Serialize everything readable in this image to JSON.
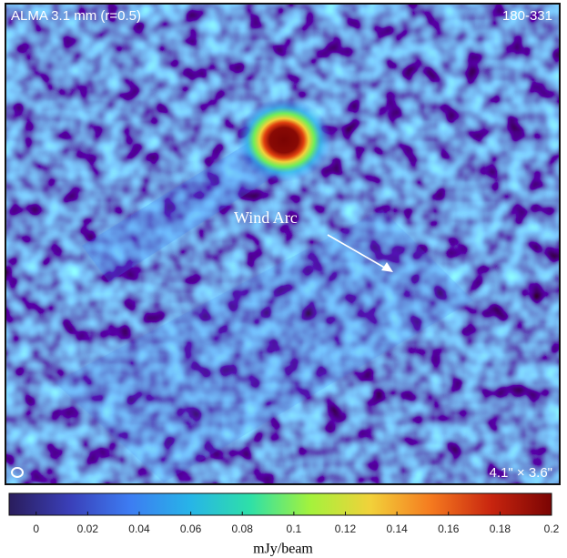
{
  "chart_data": {
    "type": "image-colorbar",
    "title": "ALMA 3.1 mm (r=0.5)",
    "subtitle": "180-331",
    "annotations": [
      "Wind Arc",
      "4.1\" × 3.6\""
    ],
    "colorbar_label": "mJy/beam",
    "colormap": [
      "#2a1d5c",
      "#3a3fb8",
      "#3d7cf2",
      "#27b4e8",
      "#2ee0a8",
      "#a4f23c",
      "#f2d13a",
      "#f57a1f",
      "#c8250f",
      "#7a0403"
    ],
    "xlim": [
      -0.0105,
      0.2
    ],
    "xticks": [
      0,
      0.02,
      0.04,
      0.06,
      0.08,
      0.1,
      0.12,
      0.14,
      0.16,
      0.18,
      0.2
    ]
  }
}
